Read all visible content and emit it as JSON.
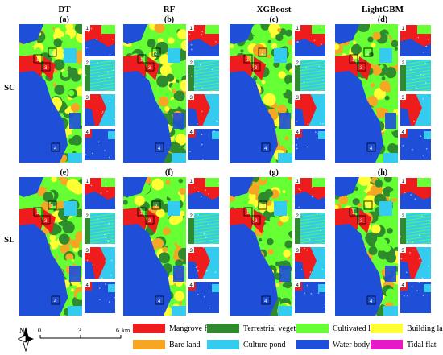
{
  "columns": [
    {
      "model": "DT",
      "panels": [
        "(a)",
        "(e)"
      ]
    },
    {
      "model": "RF",
      "panels": [
        "(b)",
        "(f)"
      ]
    },
    {
      "model": "XGBoost",
      "panels": [
        "(c)",
        "(g)"
      ]
    },
    {
      "model": "LightGBM",
      "panels": [
        "(d)",
        "(h)"
      ]
    }
  ],
  "rows": [
    "SC",
    "SL"
  ],
  "inset_numbers": [
    "1",
    "2",
    "3",
    "4"
  ],
  "legend": [
    {
      "label": "Mangrove forest",
      "color": "#ee1c1c"
    },
    {
      "label": "Terrestrial vegetation",
      "color": "#2e8b2e"
    },
    {
      "label": "Cultivated land",
      "color": "#66ff33"
    },
    {
      "label": "Building land",
      "color": "#ffff33"
    },
    {
      "label": "Bare land",
      "color": "#f5a623"
    },
    {
      "label": "Culture pond",
      "color": "#33ccee"
    },
    {
      "label": "Water body",
      "color": "#1f4fd9"
    },
    {
      "label": "Tidal flat",
      "color": "#e619c8"
    }
  ],
  "scale": {
    "ticks": [
      "0",
      "3",
      "6"
    ],
    "unit": "km"
  },
  "north_arrow": "N"
}
